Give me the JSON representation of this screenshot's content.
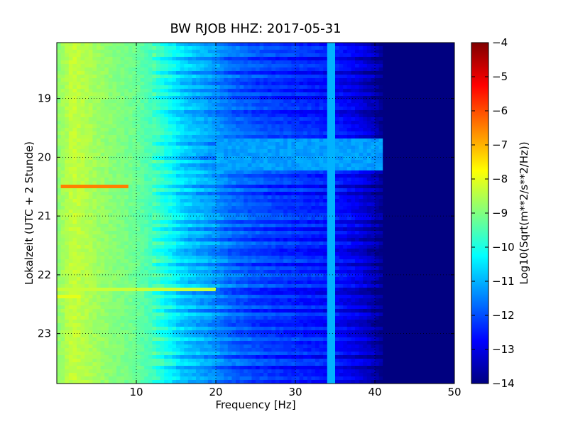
{
  "chart_data": {
    "type": "heatmap",
    "title": "BW RJOB HHZ: 2017-05-31",
    "xlabel": "Frequency [Hz]",
    "ylabel": "Lokalzeit (UTC + 2 Stunde)",
    "xlim": [
      0,
      50
    ],
    "ylim": [
      18.05,
      23.85
    ],
    "y_inverted": true,
    "x_ticks": [
      10,
      20,
      30,
      40,
      50
    ],
    "x_tick_labels": [
      "10",
      "20",
      "30",
      "40",
      "50"
    ],
    "y_ticks": [
      19,
      20,
      21,
      22,
      23
    ],
    "y_tick_labels": [
      "19",
      "20",
      "21",
      "22",
      "23"
    ],
    "grid": true,
    "colormap": "jet",
    "colorbar": {
      "label": "Log10(Sqrt(m**2/s**2/Hz))",
      "range": [
        -14,
        -4
      ],
      "ticks": [
        -4,
        -5,
        -6,
        -7,
        -8,
        -9,
        -10,
        -11,
        -12,
        -13,
        -14
      ],
      "tick_labels": [
        "−4",
        "−5",
        "−6",
        "−7",
        "−8",
        "−9",
        "−10",
        "−11",
        "−12",
        "−13",
        "−14"
      ]
    },
    "spectrum_profile": [
      {
        "hz": 0,
        "value": -8.9
      },
      {
        "hz": 2,
        "value": -8.3
      },
      {
        "hz": 6,
        "value": -8.8
      },
      {
        "hz": 10,
        "value": -9.2
      },
      {
        "hz": 12,
        "value": -9.6
      },
      {
        "hz": 14,
        "value": -10.2
      },
      {
        "hz": 16,
        "value": -10.8
      },
      {
        "hz": 18,
        "value": -11.1
      },
      {
        "hz": 20,
        "value": -11.4
      },
      {
        "hz": 22,
        "value": -11.8
      },
      {
        "hz": 25,
        "value": -12.1
      },
      {
        "hz": 28,
        "value": -12.3
      },
      {
        "hz": 32,
        "value": -12.5
      },
      {
        "hz": 35,
        "value": -12.7
      },
      {
        "hz": 38,
        "value": -13.1
      },
      {
        "hz": 40,
        "value": -13.6
      },
      {
        "hz": 41,
        "value": -14.0
      },
      {
        "hz": 50,
        "value": -14.0
      }
    ],
    "features": [
      {
        "kind": "tonal-line",
        "hz": 34.5,
        "value": -11.0
      },
      {
        "kind": "broadband-event",
        "time": 20.5,
        "hz_range": [
          0.3,
          9
        ],
        "value": -6.5
      },
      {
        "kind": "broadband-event",
        "time": 22.22,
        "hz_range": [
          0,
          20
        ],
        "value": -8.3
      },
      {
        "kind": "broadband-event",
        "time": 22.35,
        "hz_range": [
          0,
          3
        ],
        "value": -8.0
      },
      {
        "kind": "elevated-band",
        "time_range": [
          19.7,
          20.2
        ],
        "hz_range": [
          20,
          42
        ],
        "value": -11.2
      }
    ]
  }
}
